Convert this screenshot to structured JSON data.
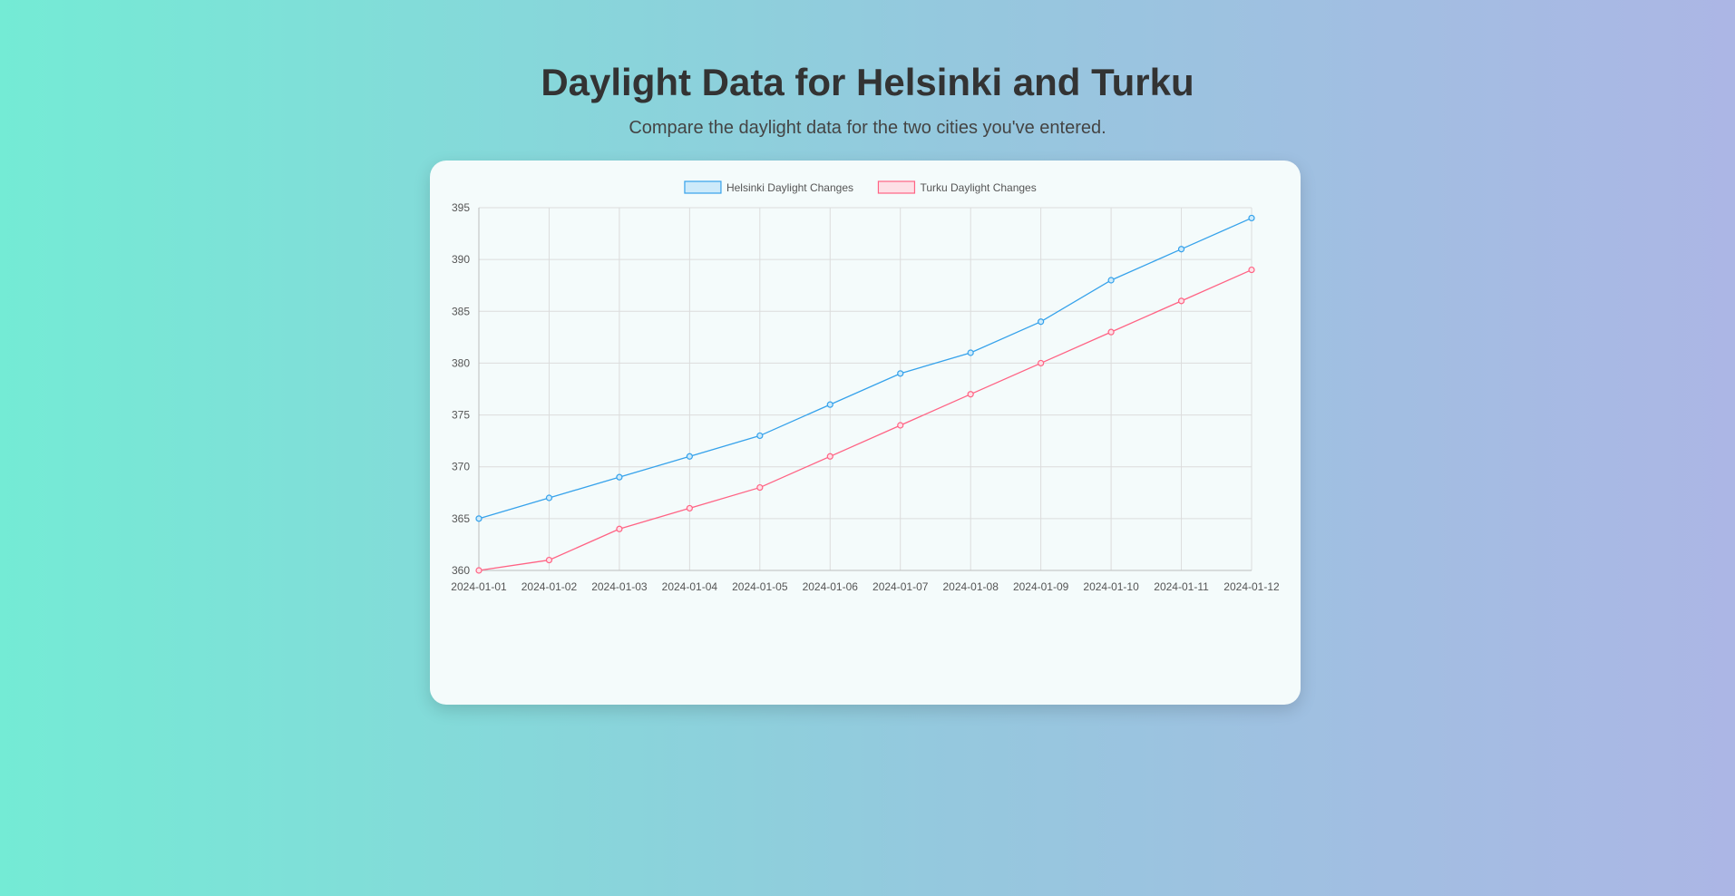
{
  "page": {
    "title": "Daylight Data for Helsinki and Turku",
    "subtitle": "Compare the daylight data for the two cities you've entered."
  },
  "chart_data": {
    "type": "line",
    "x": [
      "2024-01-01",
      "2024-01-02",
      "2024-01-03",
      "2024-01-04",
      "2024-01-05",
      "2024-01-06",
      "2024-01-07",
      "2024-01-08",
      "2024-01-09",
      "2024-01-10",
      "2024-01-11",
      "2024-01-12"
    ],
    "series": [
      {
        "name": "Helsinki Daylight Changes",
        "color": "#36a2eb",
        "fill": "#cdeafa",
        "values": [
          365,
          367,
          369,
          371,
          373,
          376,
          379,
          381,
          384,
          388,
          391,
          394
        ]
      },
      {
        "name": "Turku Daylight Changes",
        "color": "#ff6384",
        "fill": "#fde0e6",
        "values": [
          360,
          361,
          364,
          366,
          368,
          371,
          374,
          377,
          380,
          383,
          386,
          389
        ]
      }
    ],
    "ylim": [
      360,
      395
    ],
    "yticks": [
      360,
      365,
      370,
      375,
      380,
      385,
      390,
      395
    ],
    "grid": true,
    "legend": "top-center"
  }
}
